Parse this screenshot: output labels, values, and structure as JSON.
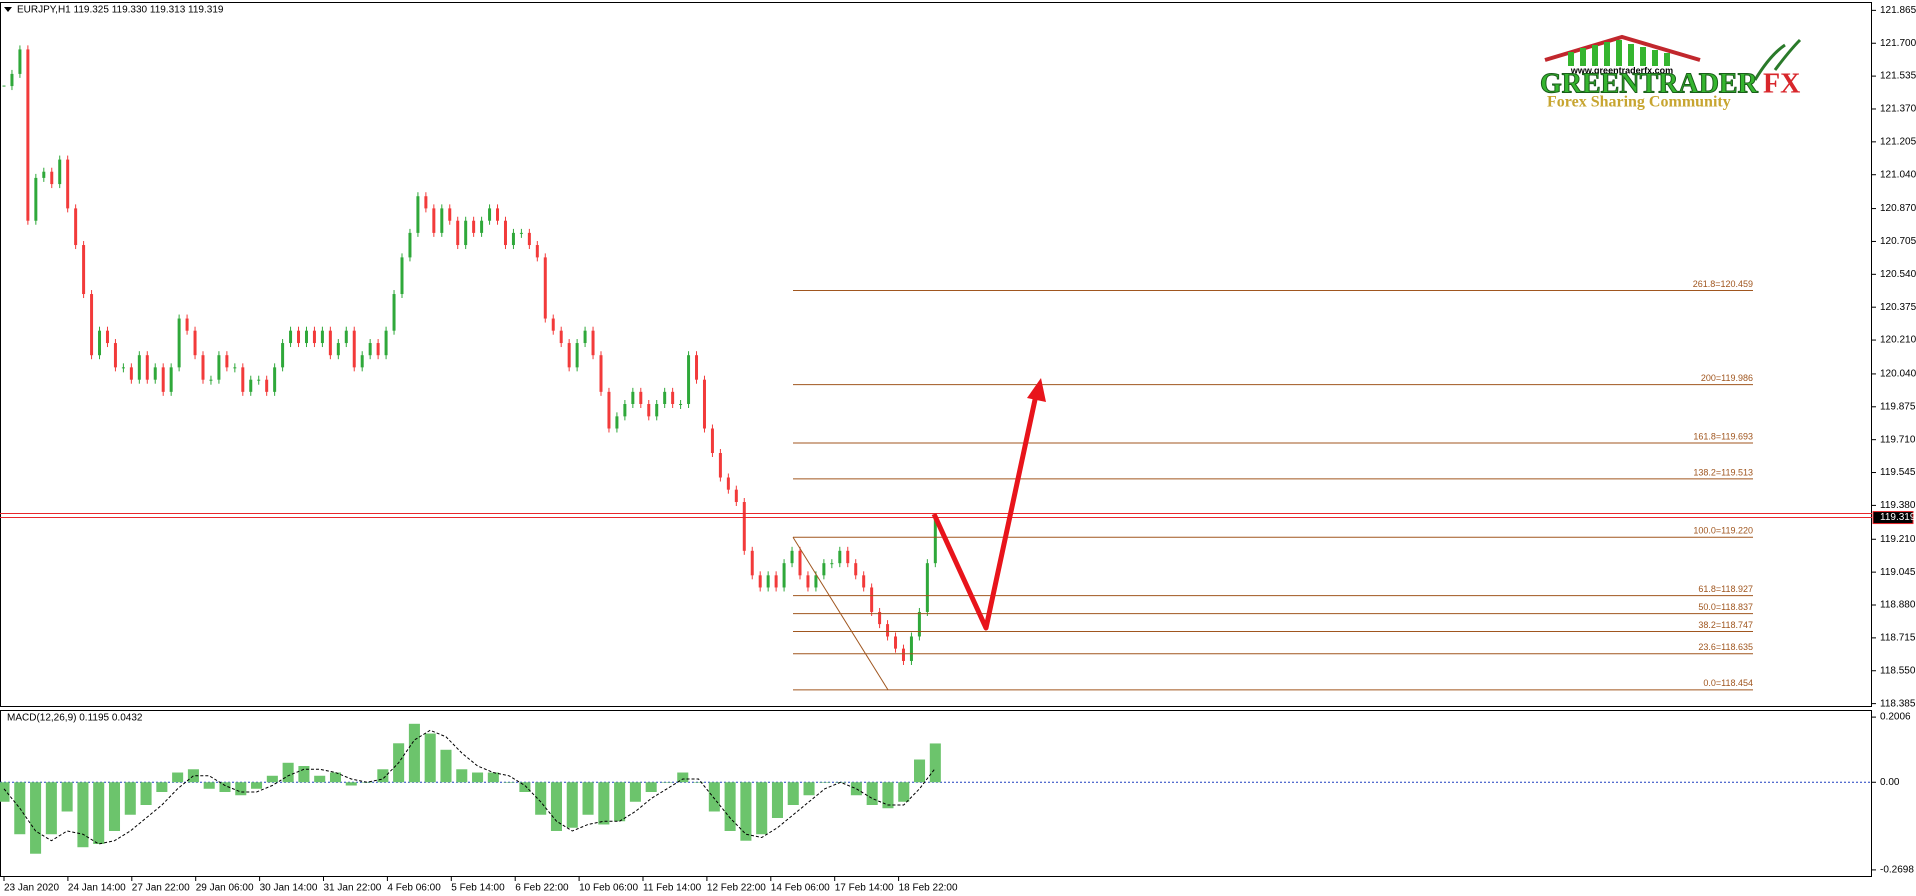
{
  "chart_data": [
    {
      "type": "candlestick",
      "header": "EURJPY,H1  119.325 119.330 119.313 119.319",
      "closes": [
        121.485,
        121.546,
        121.669,
        120.809,
        121.024,
        121.055,
        120.993,
        121.116,
        120.871,
        120.687,
        120.441,
        120.134,
        120.257,
        120.195,
        120.073,
        120.073,
        120.011,
        120.134,
        120.011,
        120.073,
        119.95,
        120.073,
        120.318,
        120.257,
        120.134,
        120.011,
        120.011,
        120.134,
        120.073,
        120.073,
        119.95,
        120.011,
        120.011,
        119.95,
        120.073,
        120.195,
        120.257,
        120.195,
        120.257,
        120.195,
        120.257,
        120.134,
        120.195,
        120.257,
        120.073,
        120.134,
        120.195,
        120.134,
        120.257,
        120.441,
        120.625,
        120.748,
        120.932,
        120.871,
        120.748,
        120.871,
        120.809,
        120.687,
        120.809,
        120.748,
        120.809,
        120.871,
        120.809,
        120.687,
        120.748,
        120.748,
        120.687,
        120.625,
        120.318,
        120.257,
        120.195,
        120.073,
        120.195,
        120.257,
        120.134,
        119.95,
        119.766,
        119.827,
        119.889,
        119.95,
        119.889,
        119.827,
        119.889,
        119.95,
        119.889,
        119.889,
        120.134,
        120.011,
        119.766,
        119.643,
        119.52,
        119.459,
        119.397,
        119.152,
        119.029,
        118.968,
        119.029,
        118.968,
        119.09,
        119.152,
        119.029,
        118.968,
        119.029,
        119.09,
        119.09,
        119.152,
        119.09,
        119.029,
        118.968,
        118.845,
        118.784,
        118.722,
        118.661,
        118.599,
        118.722,
        118.845,
        119.09,
        119.319
      ],
      "up_color": "#2fa83a",
      "down_color": "#f23a3a",
      "ylim": [
        118.373,
        121.902
      ],
      "yticks": [
        121.865,
        {
          "value": 121.7,
          "label": "121.700"
        },
        121.535,
        {
          "value": 121.37,
          "label": "121.370"
        },
        121.205,
        {
          "value": 121.04,
          "label": "121.040"
        },
        {
          "value": 120.87,
          "label": "120.870"
        },
        120.705,
        {
          "value": 120.54,
          "label": "120.540"
        },
        120.375,
        {
          "value": 120.21,
          "label": "120.210"
        },
        {
          "value": 120.04,
          "label": "120.040"
        },
        119.875,
        {
          "value": 119.71,
          "label": "119.710"
        },
        119.545,
        {
          "value": 119.38,
          "label": "119.380"
        },
        {
          "value": 119.21,
          "label": "119.210"
        },
        119.045,
        {
          "value": 118.88,
          "label": "118.880"
        },
        118.715,
        {
          "value": 118.55,
          "label": "118.550"
        },
        118.385
      ],
      "bid_price": 119.319,
      "bid_color": "#e8262b",
      "fib_color": "#a0561f",
      "fib_levels": [
        {
          "value": 120.459,
          "label": "261.8=120.459"
        },
        {
          "value": 119.986,
          "label": "200=119.986"
        },
        {
          "value": 119.693,
          "label": "161.8=119.693"
        },
        {
          "value": 119.513,
          "label": "138.2=119.513"
        },
        {
          "value": 119.22,
          "label": "100.0=119.220"
        },
        {
          "value": 118.927,
          "label": "61.8=118.927"
        },
        {
          "value": 118.837,
          "label": "50.0=118.837"
        },
        {
          "value": 118.747,
          "label": "38.2=118.747"
        },
        {
          "value": 118.635,
          "label": "23.6=118.635"
        },
        {
          "value": 118.454,
          "label": "0.0=118.454"
        }
      ],
      "categories": [
        "23 Jan 2020",
        "24 Jan 14:00",
        "27 Jan 22:00",
        "29 Jan 06:00",
        "30 Jan 14:00",
        "31 Jan 22:00",
        "4 Feb 06:00",
        "5 Feb 14:00",
        "6 Feb 22:00",
        "10 Feb 06:00",
        "11 Feb 14:00",
        "12 Feb 22:00",
        "14 Feb 06:00",
        "17 Feb 14:00",
        "18 Feb 22:00"
      ]
    },
    {
      "type": "macd",
      "title": "MACD(12,26,9) 0.1195 0.0432",
      "histogram": [
        -0.06,
        -0.16,
        -0.22,
        -0.16,
        -0.09,
        -0.2,
        -0.19,
        -0.15,
        -0.1,
        -0.07,
        -0.03,
        0.03,
        0.04,
        -0.02,
        -0.03,
        -0.04,
        -0.02,
        0.02,
        0.06,
        0.05,
        0.02,
        0.03,
        -0.01,
        0.0,
        0.04,
        0.12,
        0.18,
        0.15,
        0.1,
        0.04,
        0.03,
        0.03,
        0.0,
        -0.03,
        -0.1,
        -0.15,
        -0.14,
        -0.1,
        -0.13,
        -0.12,
        -0.06,
        -0.03,
        0.0,
        0.03,
        0.0,
        -0.09,
        -0.15,
        -0.18,
        -0.16,
        -0.11,
        -0.07,
        -0.04,
        0.0,
        0.0,
        -0.04,
        -0.07,
        -0.08,
        -0.06,
        0.07,
        0.1195
      ],
      "signal": [
        -0.02,
        -0.08,
        -0.15,
        -0.18,
        -0.15,
        -0.16,
        -0.19,
        -0.18,
        -0.15,
        -0.11,
        -0.07,
        -0.02,
        0.02,
        0.02,
        -0.01,
        -0.03,
        -0.03,
        -0.01,
        0.02,
        0.04,
        0.04,
        0.03,
        0.01,
        0.0,
        0.01,
        0.06,
        0.13,
        0.16,
        0.14,
        0.09,
        0.05,
        0.03,
        0.02,
        -0.01,
        -0.06,
        -0.12,
        -0.15,
        -0.13,
        -0.12,
        -0.12,
        -0.09,
        -0.05,
        -0.02,
        0.01,
        0.01,
        -0.05,
        -0.11,
        -0.16,
        -0.17,
        -0.14,
        -0.1,
        -0.06,
        -0.02,
        0.0,
        -0.02,
        -0.05,
        -0.07,
        -0.07,
        -0.02,
        0.0432
      ],
      "hist_color": "#6cc46c",
      "signal_color": "#000000",
      "zero_color": "#1f3fbf",
      "ylim": [
        -0.2886,
        0.2194
      ],
      "yticks": [
        0.2006,
        {
          "value": 0,
          "label": "0.00"
        },
        -0.2698
      ]
    }
  ],
  "logo": {
    "name": "GREENTRADER",
    "suffix": "FX",
    "tagline": "Forex Sharing Community",
    "url": "www.greentraderfx.com"
  }
}
